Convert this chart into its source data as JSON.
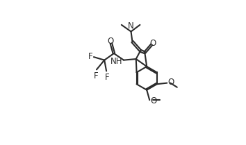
{
  "bg_color": "#ffffff",
  "line_color": "#2a2a2a",
  "line_width": 1.5,
  "font_size": 8.5,
  "figsize": [
    3.54,
    2.09
  ],
  "dpi": 100,
  "xlim": [
    0,
    10
  ],
  "ylim": [
    0,
    10
  ]
}
